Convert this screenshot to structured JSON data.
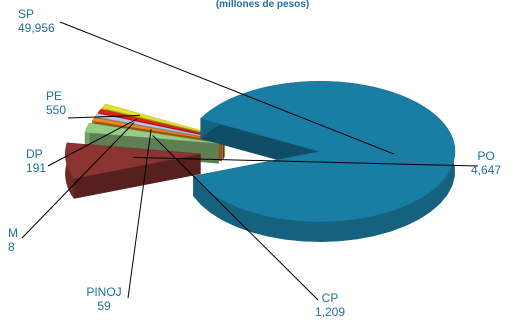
{
  "chart_data": {
    "type": "pie",
    "subtitle": "(millones de pesos)",
    "style": "3d-exploded",
    "slices": [
      {
        "label": "SP",
        "value": 49956,
        "display": "49,956",
        "color": "#1a7ea4"
      },
      {
        "label": "PO",
        "value": 4647,
        "display": "4,647",
        "color": "#8b3431"
      },
      {
        "label": "CP",
        "value": 1209,
        "display": "1,209",
        "color": "#98cc86"
      },
      {
        "label": "PINOJ",
        "value": 59,
        "display": "59",
        "color": "#f08a1c"
      },
      {
        "label": "M",
        "value": 8,
        "display": "8",
        "color": "#b9c7e3"
      },
      {
        "label": "DP",
        "value": 191,
        "display": "191",
        "color": "#ee1c1c"
      },
      {
        "label": "PE",
        "value": 550,
        "display": "550",
        "color": "#e6e02a"
      }
    ]
  }
}
